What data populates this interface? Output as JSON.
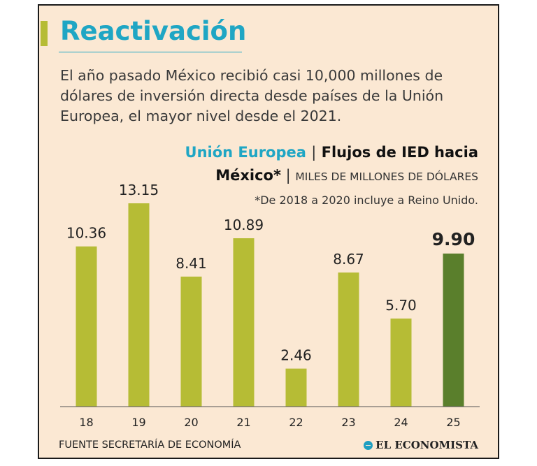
{
  "headline": "Reactivación",
  "intro": "El año pasado México recibió casi 10,000 millones de dólares de inversión directa desde países de la Unión Europea, el mayor nivel desde el 2021.",
  "chart_title": {
    "region": "Unión Europea",
    "sep1": "|",
    "main_part1": "Flujos de IED hacia",
    "main_part2": "México*",
    "sep2": "|",
    "units": "MILES DE MILLONES DE DÓLARES"
  },
  "footnote": "*De 2018 a 2020 incluye a Reino Unido.",
  "source": "FUENTE SECRETARÍA DE ECONOMÍA",
  "brand": "EL ECONOMISTA",
  "colors": {
    "accent": "#1fa6c4",
    "bar": "#b6bc35",
    "bar_highlight": "#5a7f2c",
    "background": "#fbe8d3",
    "marker": "#b6bc35"
  },
  "chart_data": {
    "type": "bar",
    "categories": [
      "18",
      "19",
      "20",
      "21",
      "22",
      "23",
      "24",
      "25"
    ],
    "values": [
      10.36,
      13.15,
      8.41,
      10.89,
      2.46,
      8.67,
      5.7,
      9.9
    ],
    "value_labels": [
      "10.36",
      "13.15",
      "8.41",
      "10.89",
      "2.46",
      "8.67",
      "5.70",
      "9.90"
    ],
    "highlight_index": 7,
    "ylim": [
      0,
      13.15
    ],
    "grid": false,
    "title": "Unión Europea | Flujos de IED hacia México* | MILES DE MILLONES DE DÓLARES",
    "xlabel": "",
    "ylabel": ""
  }
}
